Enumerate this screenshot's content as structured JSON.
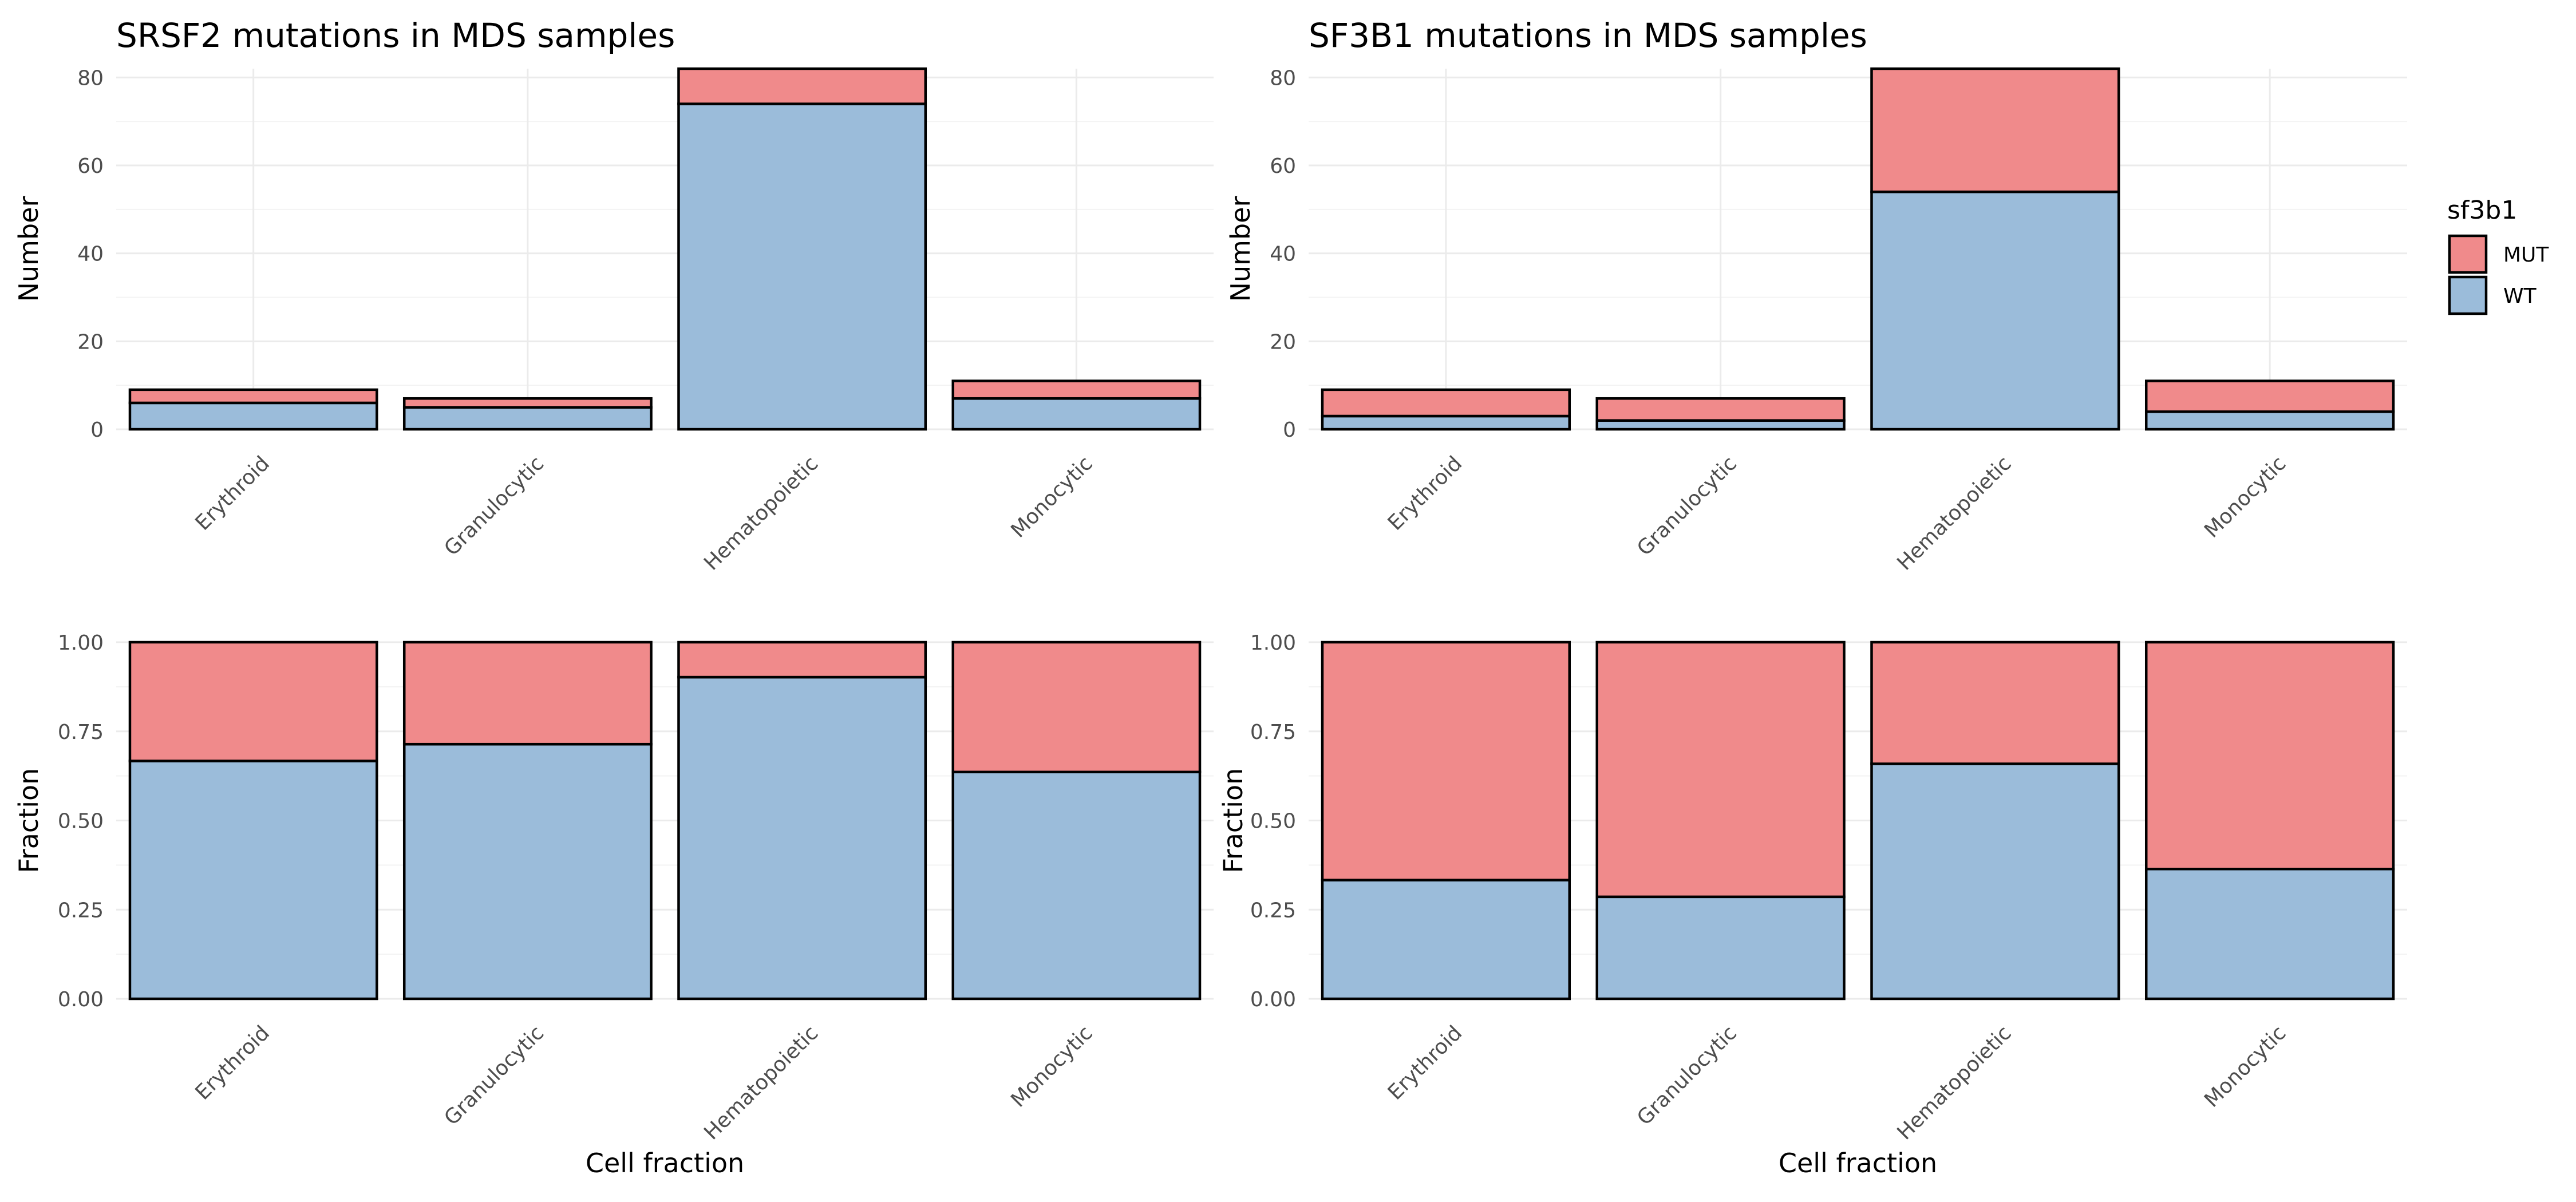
{
  "colors": {
    "MUT": "#f08a8b",
    "WT": "#9bbcda"
  },
  "legend": {
    "title": "sf3b1",
    "items": [
      {
        "key": "MUT",
        "label": "MUT"
      },
      {
        "key": "WT",
        "label": "WT"
      }
    ]
  },
  "chart_data": [
    {
      "id": "srsf2-count",
      "type": "bar",
      "stacked": true,
      "title": "SRSF2 mutations in MDS samples",
      "xlabel": "",
      "ylabel": "Number",
      "ylim": [
        0,
        82
      ],
      "yticks": [
        0,
        20,
        40,
        60,
        80
      ],
      "categories": [
        "Erythroid",
        "Granulocytic",
        "Hematopoietic",
        "Monocytic"
      ],
      "series": [
        {
          "key": "WT",
          "values": [
            6,
            5,
            74,
            7
          ]
        },
        {
          "key": "MUT",
          "values": [
            3,
            2,
            8,
            4
          ]
        }
      ]
    },
    {
      "id": "sf3b1-count",
      "type": "bar",
      "stacked": true,
      "title": "SF3B1 mutations in  MDS samples",
      "xlabel": "",
      "ylabel": "Number",
      "ylim": [
        0,
        82
      ],
      "yticks": [
        0,
        20,
        40,
        60,
        80
      ],
      "categories": [
        "Erythroid",
        "Granulocytic",
        "Hematopoietic",
        "Monocytic"
      ],
      "series": [
        {
          "key": "WT",
          "values": [
            3,
            2,
            54,
            4
          ]
        },
        {
          "key": "MUT",
          "values": [
            6,
            5,
            28,
            7
          ]
        }
      ]
    },
    {
      "id": "srsf2-fraction",
      "type": "bar",
      "stacked": true,
      "title": "",
      "xlabel": "Cell fraction",
      "ylabel": "Fraction",
      "ylim": [
        0,
        1
      ],
      "yticks": [
        0,
        0.25,
        0.5,
        0.75,
        1
      ],
      "ytick_labels": [
        "0.00",
        "0.25",
        "0.50",
        "0.75",
        "1.00"
      ],
      "categories": [
        "Erythroid",
        "Granulocytic",
        "Hematopoietic",
        "Monocytic"
      ],
      "series": [
        {
          "key": "WT",
          "values": [
            0.667,
            0.714,
            0.902,
            0.636
          ]
        },
        {
          "key": "MUT",
          "values": [
            0.333,
            0.286,
            0.098,
            0.364
          ]
        }
      ]
    },
    {
      "id": "sf3b1-fraction",
      "type": "bar",
      "stacked": true,
      "title": "",
      "xlabel": "Cell fraction",
      "ylabel": "Fraction",
      "ylim": [
        0,
        1
      ],
      "yticks": [
        0,
        0.25,
        0.5,
        0.75,
        1
      ],
      "ytick_labels": [
        "0.00",
        "0.25",
        "0.50",
        "0.75",
        "1.00"
      ],
      "categories": [
        "Erythroid",
        "Granulocytic",
        "Hematopoietic",
        "Monocytic"
      ],
      "series": [
        {
          "key": "WT",
          "values": [
            0.333,
            0.286,
            0.659,
            0.364
          ]
        },
        {
          "key": "MUT",
          "values": [
            0.667,
            0.714,
            0.341,
            0.636
          ]
        }
      ]
    }
  ]
}
